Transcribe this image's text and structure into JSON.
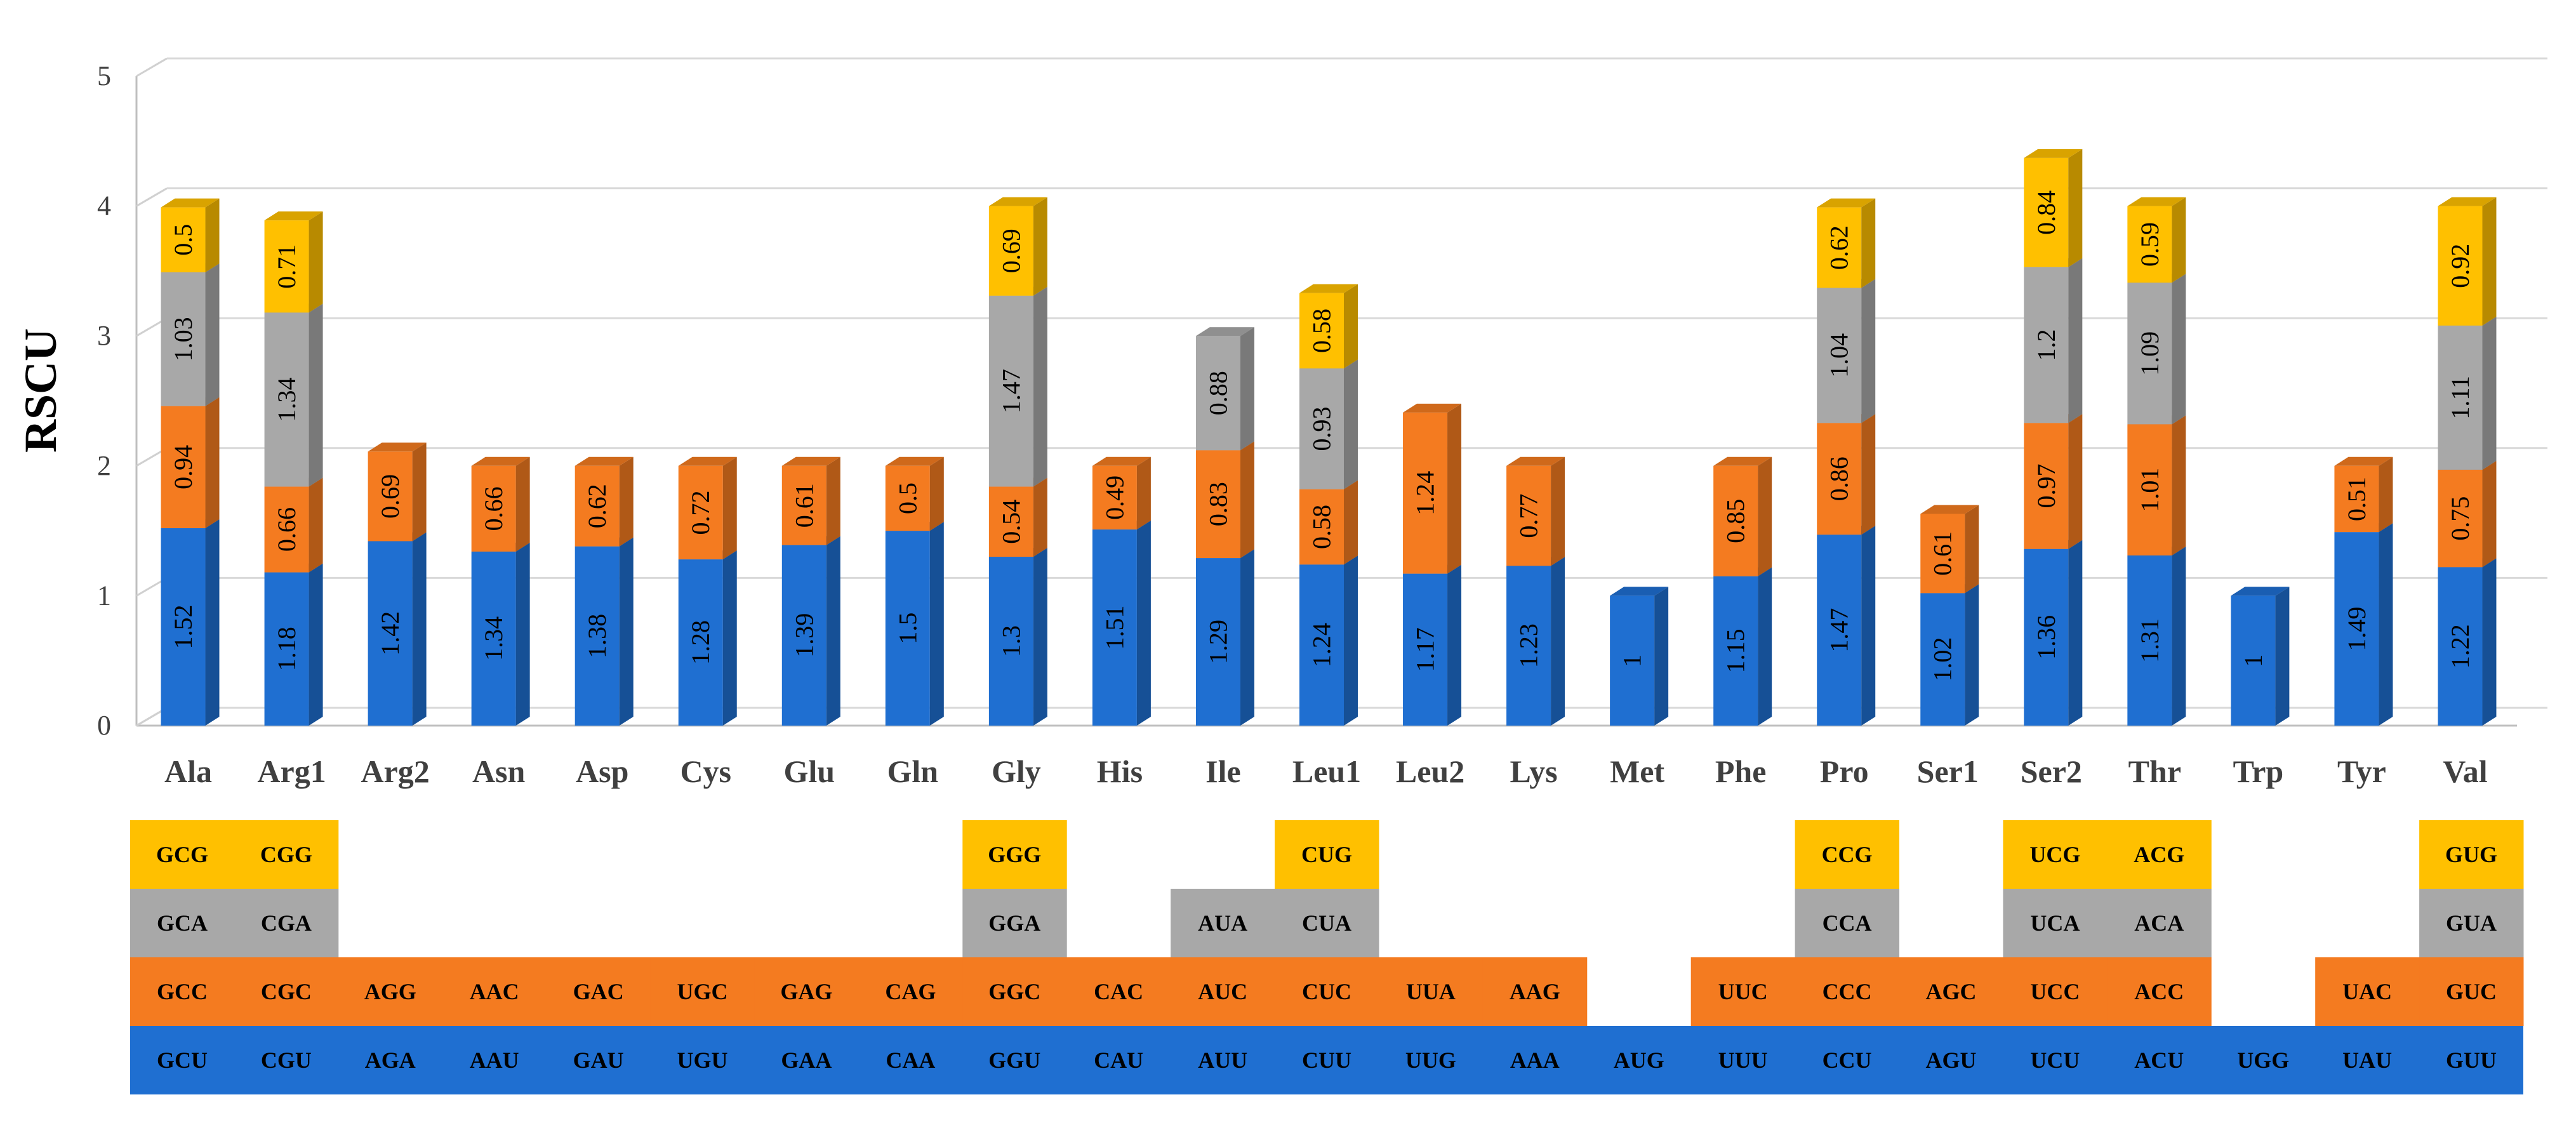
{
  "chart_data": {
    "type": "bar",
    "stacked": true,
    "ylabel": "RSCU",
    "ylim": [
      0,
      5
    ],
    "yticks": [
      0,
      1,
      2,
      3,
      4,
      5
    ],
    "grid": true,
    "categories": [
      "Ala",
      "Arg1",
      "Arg2",
      "Asn",
      "Asp",
      "Cys",
      "Glu",
      "Gln",
      "Gly",
      "His",
      "Ile",
      "Leu1",
      "Leu2",
      "Lys",
      "Met",
      "Phe",
      "Pro",
      "Ser1",
      "Ser2",
      "Thr",
      "Trp",
      "Tyr",
      "Val"
    ],
    "series": [
      {
        "color": "#1F6FD1",
        "values": [
          1.52,
          1.18,
          1.42,
          1.34,
          1.38,
          1.28,
          1.39,
          1.5,
          1.3,
          1.51,
          1.29,
          1.24,
          1.17,
          1.23,
          1,
          1.15,
          1.47,
          1.02,
          1.36,
          1.31,
          1,
          1.49,
          1.22
        ]
      },
      {
        "color": "#F47B20",
        "values": [
          0.94,
          0.66,
          0.69,
          0.66,
          0.62,
          0.72,
          0.61,
          0.5,
          0.54,
          0.49,
          0.83,
          0.58,
          1.24,
          0.77,
          null,
          0.85,
          0.86,
          0.61,
          0.97,
          1.01,
          null,
          0.51,
          0.75
        ]
      },
      {
        "color": "#A8A8A8",
        "values": [
          1.03,
          1.34,
          null,
          null,
          null,
          null,
          null,
          null,
          1.47,
          null,
          0.88,
          0.93,
          null,
          null,
          null,
          null,
          1.04,
          null,
          1.2,
          1.09,
          null,
          null,
          1.11
        ]
      },
      {
        "color": "#FFC000",
        "values": [
          0.5,
          0.71,
          null,
          null,
          null,
          null,
          null,
          null,
          0.69,
          null,
          null,
          0.58,
          null,
          null,
          null,
          null,
          0.62,
          null,
          0.84,
          0.59,
          null,
          null,
          0.92
        ]
      }
    ],
    "codons": [
      [
        "GCU",
        "GCC",
        "GCA",
        "GCG"
      ],
      [
        "CGU",
        "CGC",
        "CGA",
        "CGG"
      ],
      [
        "AGA",
        "AGG",
        null,
        null
      ],
      [
        "AAU",
        "AAC",
        null,
        null
      ],
      [
        "GAU",
        "GAC",
        null,
        null
      ],
      [
        "UGU",
        "UGC",
        null,
        null
      ],
      [
        "GAA",
        "GAG",
        null,
        null
      ],
      [
        "CAA",
        "CAG",
        null,
        null
      ],
      [
        "GGU",
        "GGC",
        "GGA",
        "GGG"
      ],
      [
        "CAU",
        "CAC",
        null,
        null
      ],
      [
        "AUU",
        "AUC",
        "AUA",
        null
      ],
      [
        "CUU",
        "CUC",
        "CUA",
        "CUG"
      ],
      [
        "UUG",
        "UUA",
        null,
        null
      ],
      [
        "AAA",
        "AAG",
        null,
        null
      ],
      [
        "AUG",
        null,
        null,
        null
      ],
      [
        "UUU",
        "UUC",
        null,
        null
      ],
      [
        "CCU",
        "CCC",
        "CCA",
        "CCG"
      ],
      [
        "AGU",
        "AGC",
        null,
        null
      ],
      [
        "UCU",
        "UCC",
        "UCA",
        "UCG"
      ],
      [
        "ACU",
        "ACC",
        "ACA",
        "ACG"
      ],
      [
        "UGG",
        null,
        null,
        null
      ],
      [
        "UAU",
        "UAC",
        null,
        null
      ],
      [
        "GUU",
        "GUC",
        "GUA",
        "GUG"
      ]
    ]
  }
}
